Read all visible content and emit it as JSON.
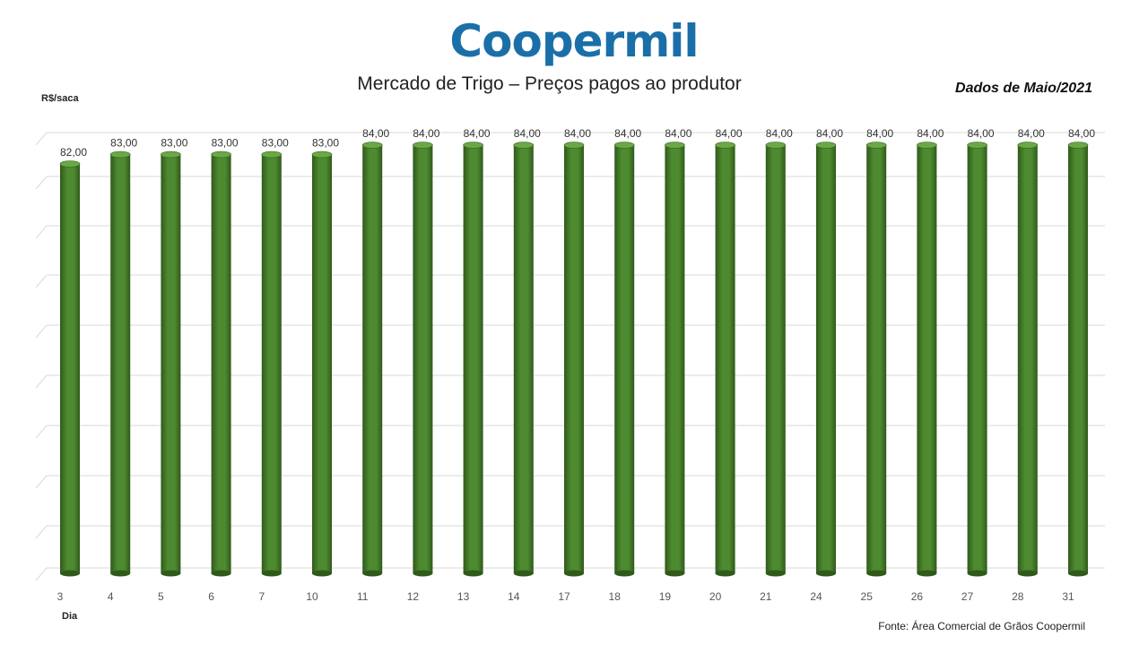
{
  "logo_text": "Coopermil",
  "colors": {
    "brand": "#1b6fa8",
    "bar": "#4e8a30",
    "bar_dark": "#2f5a1b",
    "bar_top": "#6aa845",
    "grid": "#d9d9d9"
  },
  "header": {
    "title": "Mercado de Trigo – Preços pagos ao produtor",
    "period": "Dados de Maio/2021"
  },
  "footer": {
    "source": "Fonte: Área Comercial de Grãos Coopermil"
  },
  "chart_data": {
    "type": "bar",
    "style": "3d-cylinder",
    "title": "Mercado de Trigo – Preços pagos ao produtor",
    "xlabel": "Dia",
    "ylabel": "R$/saca",
    "categories": [
      "3",
      "4",
      "5",
      "6",
      "7",
      "10",
      "11",
      "12",
      "13",
      "14",
      "17",
      "18",
      "19",
      "20",
      "21",
      "24",
      "25",
      "26",
      "27",
      "28",
      "31"
    ],
    "values": [
      82,
      83,
      83,
      83,
      83,
      83,
      84,
      84,
      84,
      84,
      84,
      84,
      84,
      84,
      84,
      84,
      84,
      84,
      84,
      84,
      84
    ],
    "value_labels": [
      "82,00",
      "83,00",
      "83,00",
      "83,00",
      "83,00",
      "83,00",
      "84,00",
      "84,00",
      "84,00",
      "84,00",
      "84,00",
      "84,00",
      "84,00",
      "84,00",
      "84,00",
      "84,00",
      "84,00",
      "84,00",
      "84,00",
      "84,00",
      "84,00"
    ],
    "grid": true,
    "legend": "none"
  }
}
